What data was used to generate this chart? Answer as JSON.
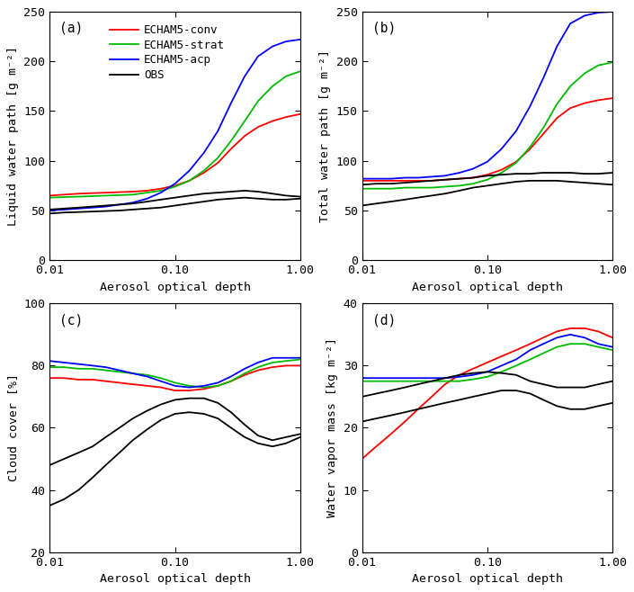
{
  "aod": [
    0.01,
    0.013,
    0.017,
    0.022,
    0.028,
    0.036,
    0.046,
    0.06,
    0.077,
    0.1,
    0.13,
    0.17,
    0.22,
    0.28,
    0.36,
    0.46,
    0.6,
    0.77,
    1.0
  ],
  "panel_a": {
    "title": "(a)",
    "ylabel": "Liquid water path [g m⁻²]",
    "ylim": [
      0,
      250
    ],
    "yticks": [
      0,
      50,
      100,
      150,
      200,
      250
    ],
    "echam5_conv": [
      65,
      66,
      67,
      67.5,
      68,
      68.5,
      69,
      70,
      72,
      75,
      80,
      88,
      98,
      112,
      125,
      134,
      140,
      144,
      147
    ],
    "echam5_strat": [
      63,
      63.5,
      64,
      64.5,
      65,
      65.5,
      66,
      68,
      70,
      74,
      80,
      90,
      103,
      120,
      140,
      160,
      175,
      185,
      190
    ],
    "echam5_acp": [
      50,
      51,
      52,
      53,
      54,
      56,
      58,
      62,
      68,
      77,
      90,
      108,
      130,
      158,
      185,
      205,
      215,
      220,
      222
    ],
    "obs1": [
      51,
      52,
      53,
      54,
      55,
      56,
      57,
      59,
      61,
      63,
      65,
      67,
      68,
      69,
      70,
      69,
      67,
      65,
      64
    ],
    "obs2": [
      47,
      48,
      48.5,
      49,
      49.5,
      50,
      51,
      52,
      53,
      55,
      57,
      59,
      61,
      62,
      63,
      62,
      61,
      61,
      62
    ]
  },
  "panel_b": {
    "title": "(b)",
    "ylabel": "Total water path [g m⁻²]",
    "ylim": [
      0,
      250
    ],
    "yticks": [
      0,
      50,
      100,
      150,
      200,
      250
    ],
    "echam5_conv": [
      80,
      80,
      80,
      80,
      80,
      80,
      81,
      82,
      83,
      86,
      91,
      99,
      112,
      127,
      143,
      153,
      158,
      161,
      163
    ],
    "echam5_strat": [
      72,
      72,
      72,
      73,
      73,
      73,
      74,
      75,
      77,
      81,
      88,
      98,
      114,
      133,
      157,
      175,
      188,
      196,
      199
    ],
    "echam5_acp": [
      82,
      82,
      82,
      83,
      83,
      84,
      85,
      88,
      92,
      99,
      112,
      130,
      155,
      183,
      215,
      238,
      246,
      249,
      250
    ],
    "obs1": [
      76,
      77,
      77,
      78,
      79,
      80,
      81,
      82,
      83,
      85,
      86,
      87,
      87,
      88,
      88,
      88,
      87,
      87,
      88
    ],
    "obs2": [
      55,
      57,
      59,
      61,
      63,
      65,
      67,
      70,
      73,
      75,
      77,
      79,
      80,
      80,
      80,
      79,
      78,
      77,
      76
    ]
  },
  "panel_c": {
    "title": "(c)",
    "ylabel": "Cloud cover [%]",
    "ylim": [
      20,
      100
    ],
    "yticks": [
      20,
      40,
      60,
      80,
      100
    ],
    "echam5_conv": [
      76,
      76,
      75.5,
      75.5,
      75,
      74.5,
      74,
      73.5,
      73,
      72,
      72,
      72.5,
      73.5,
      75,
      77,
      78.5,
      79.5,
      80,
      80
    ],
    "echam5_strat": [
      79.5,
      79.5,
      79,
      79,
      78.5,
      78,
      77.5,
      77,
      76,
      74.5,
      73.5,
      73,
      73.5,
      75,
      77.5,
      79.5,
      81,
      81.5,
      82
    ],
    "echam5_acp": [
      81.5,
      81,
      80.5,
      80,
      79.5,
      78.5,
      77.5,
      76.5,
      75,
      73.5,
      73,
      73.5,
      74.5,
      76.5,
      79,
      81,
      82.5,
      82.5,
      82.5
    ],
    "obs1": [
      48,
      50,
      52,
      54,
      57,
      60,
      63,
      65.5,
      67.5,
      69,
      69.5,
      69.5,
      68,
      65,
      61,
      57.5,
      56,
      57,
      58
    ],
    "obs2": [
      35,
      37,
      40,
      44,
      48,
      52,
      56,
      59.5,
      62.5,
      64.5,
      65,
      64.5,
      63,
      60,
      57,
      55,
      54,
      55,
      57
    ]
  },
  "panel_d": {
    "title": "(d)",
    "ylabel": "Water vapor mass [kg m⁻²]",
    "ylim": [
      0,
      40
    ],
    "yticks": [
      0,
      10,
      20,
      30,
      40
    ],
    "echam5_conv": [
      15,
      17,
      19,
      21,
      23,
      25,
      27,
      28.5,
      29.5,
      30.5,
      31.5,
      32.5,
      33.5,
      34.5,
      35.5,
      36,
      36,
      35.5,
      34.5
    ],
    "echam5_strat": [
      27.5,
      27.5,
      27.5,
      27.5,
      27.5,
      27.5,
      27.5,
      27.5,
      27.8,
      28.2,
      29,
      30,
      31,
      32,
      33,
      33.5,
      33.5,
      33,
      32.5
    ],
    "echam5_acp": [
      28,
      28,
      28,
      28,
      28,
      28,
      28,
      28.2,
      28.5,
      29,
      30,
      31,
      32.5,
      33.5,
      34.5,
      35,
      34.5,
      33.5,
      33
    ],
    "obs1": [
      25,
      25.5,
      26,
      26.5,
      27,
      27.5,
      28,
      28.5,
      28.8,
      29,
      28.8,
      28.5,
      27.5,
      27,
      26.5,
      26.5,
      26.5,
      27,
      27.5
    ],
    "obs2": [
      21,
      21.5,
      22,
      22.5,
      23,
      23.5,
      24,
      24.5,
      25,
      25.5,
      26,
      26,
      25.5,
      24.5,
      23.5,
      23,
      23,
      23.5,
      24
    ]
  },
  "colors": {
    "echam5_conv": "#FF0000",
    "echam5_strat": "#00BB00",
    "echam5_acp": "#0000FF",
    "obs": "#000000"
  },
  "legend_labels": [
    "ECHAM5-conv",
    "ECHAM5-strat",
    "ECHAM5-acp",
    "OBS"
  ],
  "xlabel": "Aerosol optical depth",
  "linewidth": 1.3,
  "background_color": "#FFFFFF",
  "font_size": 9.5
}
